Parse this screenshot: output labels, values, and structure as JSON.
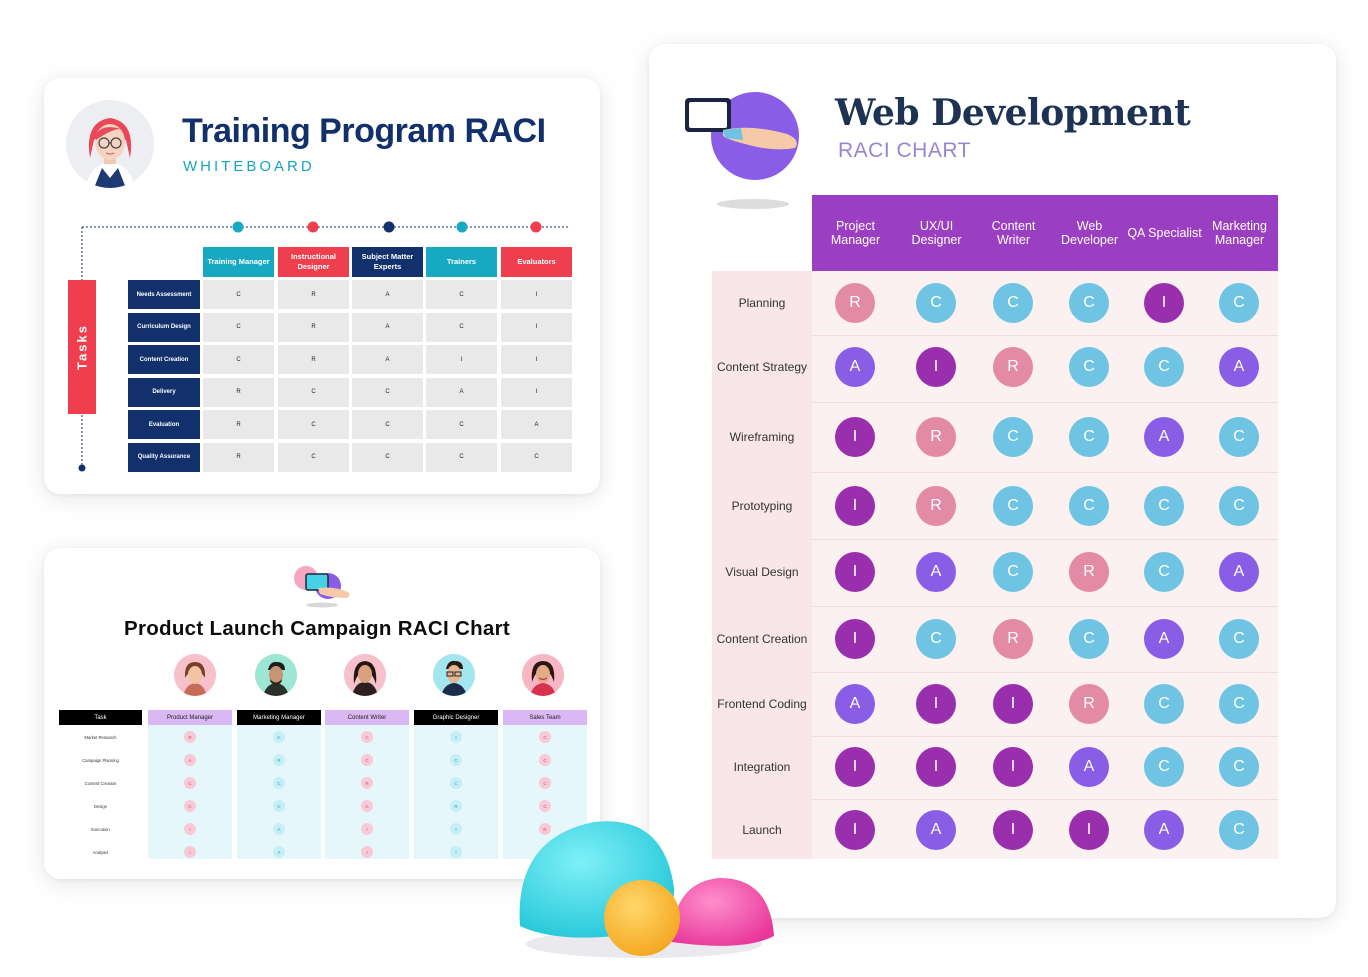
{
  "training": {
    "title": "Training Program RACI",
    "subtitle": "WHITEBOARD",
    "tasks_label": "Tasks",
    "columns": [
      {
        "label": "Training Manager",
        "color": "#18a9c2"
      },
      {
        "label": "Instructional Designer",
        "color": "#ef3f4f"
      },
      {
        "label": "Subject Matter Experts",
        "color": "#12306b"
      },
      {
        "label": "Trainers",
        "color": "#18a9c2"
      },
      {
        "label": "Evaluators",
        "color": "#ef3f4f"
      }
    ],
    "rows": [
      {
        "task": "Needs Assessment",
        "values": [
          "C",
          "R",
          "A",
          "C",
          "I"
        ]
      },
      {
        "task": "Curriculum Design",
        "values": [
          "C",
          "R",
          "A",
          "C",
          "I"
        ]
      },
      {
        "task": "Content Creation",
        "values": [
          "C",
          "R",
          "A",
          "I",
          "I"
        ]
      },
      {
        "task": "Delivery",
        "values": [
          "R",
          "C",
          "C",
          "A",
          "I"
        ]
      },
      {
        "task": "Evaluation",
        "values": [
          "R",
          "C",
          "C",
          "C",
          "A"
        ]
      },
      {
        "task": "Quality Assurance",
        "values": [
          "R",
          "C",
          "C",
          "C",
          "C"
        ]
      }
    ]
  },
  "product": {
    "title": "Product Launch Campaign RACI Chart",
    "task_header": "Task",
    "columns": [
      {
        "label": "Product Manager",
        "header_bg": "#d9b8f3"
      },
      {
        "label": "Marketing Manager",
        "header_bg": "#000000"
      },
      {
        "label": "Content Writer",
        "header_bg": "#d9b8f3"
      },
      {
        "label": "Graphic Designer",
        "header_bg": "#000000"
      },
      {
        "label": "Sales Team",
        "header_bg": "#d9b8f3"
      }
    ],
    "rows": [
      {
        "task": "Market Research",
        "values": [
          "R",
          "C",
          "C",
          "I",
          "C"
        ]
      },
      {
        "task": "Campaign Planning",
        "values": [
          "A",
          "R",
          "C",
          "C",
          "C"
        ]
      },
      {
        "task": "Content Creation",
        "values": [
          "C",
          "C",
          "R",
          "C",
          "C"
        ]
      },
      {
        "task": "Design",
        "values": [
          "C",
          "C",
          "C",
          "R",
          "C"
        ]
      },
      {
        "task": "Execution",
        "values": [
          "I",
          "A",
          "I",
          "I",
          "R"
        ]
      },
      {
        "task": "Analysis",
        "values": [
          "I",
          "A",
          "I",
          "I",
          ""
        ]
      }
    ]
  },
  "web": {
    "title": "Web Development",
    "subtitle": "RACI CHART",
    "columns": [
      "Project Manager",
      "UX/UI Designer",
      "Content Writer",
      "Web Developer",
      "QA Specialist",
      "Marketing Manager"
    ],
    "rows": [
      {
        "task": "Planning",
        "values": [
          "R",
          "C",
          "C",
          "C",
          "I",
          "C"
        ]
      },
      {
        "task": "Content Strategy",
        "values": [
          "A",
          "I",
          "R",
          "C",
          "C",
          "A"
        ]
      },
      {
        "task": "Wireframing",
        "values": [
          "I",
          "R",
          "C",
          "C",
          "A",
          "C"
        ]
      },
      {
        "task": "Prototyping",
        "values": [
          "I",
          "R",
          "C",
          "C",
          "C",
          "C"
        ]
      },
      {
        "task": "Visual Design",
        "values": [
          "I",
          "A",
          "C",
          "R",
          "C",
          "A"
        ]
      },
      {
        "task": "Content Creation",
        "values": [
          "I",
          "C",
          "R",
          "C",
          "A",
          "C"
        ]
      },
      {
        "task": "Frontend Coding",
        "values": [
          "A",
          "I",
          "I",
          "R",
          "C",
          "C"
        ]
      },
      {
        "task": "Integration",
        "values": [
          "I",
          "I",
          "I",
          "A",
          "C",
          "C"
        ]
      },
      {
        "task": "Launch",
        "values": [
          "I",
          "A",
          "I",
          "I",
          "A",
          "C"
        ]
      }
    ],
    "colors": {
      "R": "#e38aa6",
      "A": "#8a5de6",
      "C": "#6fc3e3",
      "I": "#9a2fae"
    }
  }
}
